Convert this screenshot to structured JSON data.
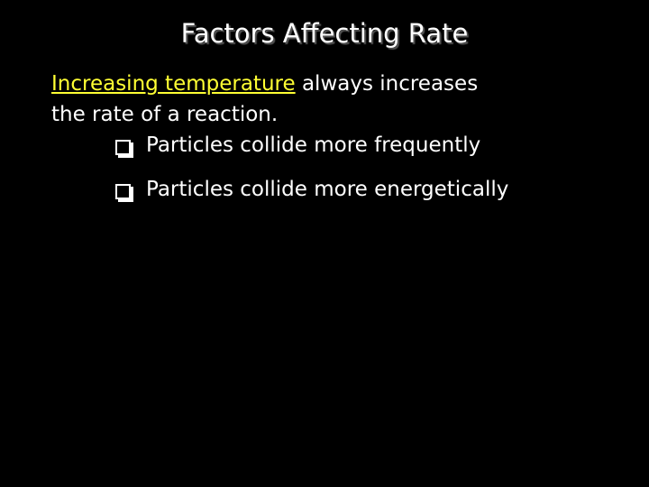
{
  "slide": {
    "title": "Factors Affecting Rate",
    "statement": {
      "emphasis": "Increasing temperature",
      "line1_rest": "always increases",
      "line2": "the rate of a reaction."
    },
    "bullets": [
      "Particles collide more frequently",
      "Particles collide more energetically"
    ]
  }
}
